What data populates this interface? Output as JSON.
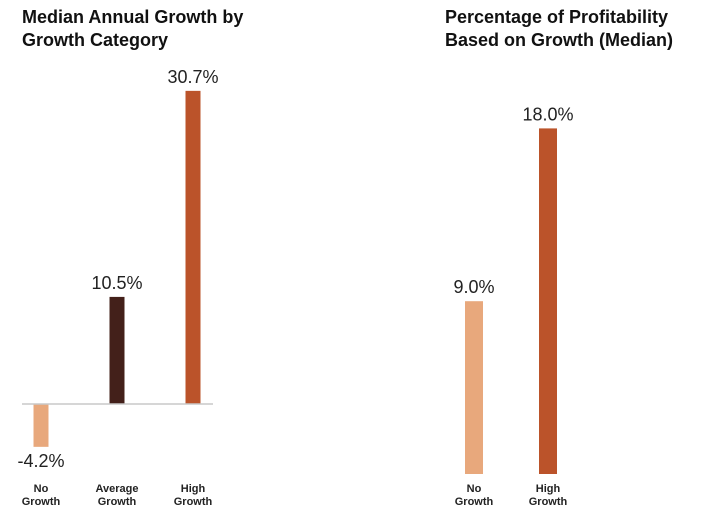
{
  "chart_data": [
    {
      "type": "bar",
      "title_lines": [
        "Median Annual Growth by",
        "Growth Category"
      ],
      "categories": [
        [
          "No",
          "Growth"
        ],
        [
          "Average",
          "Growth"
        ],
        [
          "High",
          "Growth"
        ]
      ],
      "values": [
        -4.2,
        10.5,
        30.7
      ],
      "value_labels": [
        "-4.2%",
        "10.5%",
        "30.7%"
      ],
      "colors": [
        "#e8a87c",
        "#43201a",
        "#bb532a"
      ],
      "zero_line": true
    },
    {
      "type": "bar",
      "title_lines": [
        "Percentage of Profitability",
        "Based on Growth (Median)"
      ],
      "categories": [
        [
          "No",
          "Growth"
        ],
        [
          "High",
          "Growth"
        ]
      ],
      "values": [
        9.0,
        18.0
      ],
      "value_labels": [
        "9.0%",
        "18.0%"
      ],
      "colors": [
        "#e8a87c",
        "#bb532a"
      ],
      "zero_line": false
    }
  ]
}
